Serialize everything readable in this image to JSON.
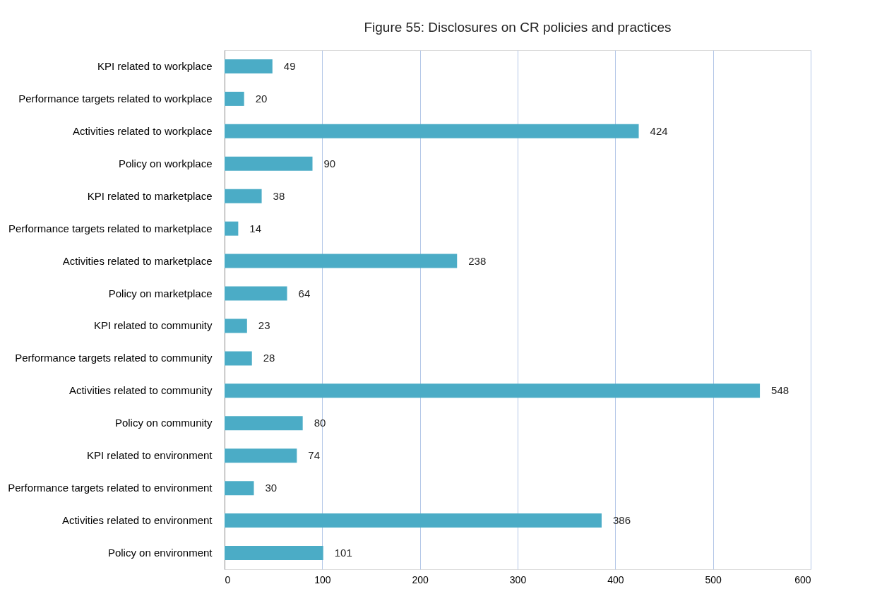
{
  "chart_data": {
    "type": "bar",
    "orientation": "horizontal",
    "title": "Figure 55: Disclosures on CR policies and practices",
    "categories": [
      "KPI related to workplace",
      "Performance targets related to workplace",
      "Activities related to workplace",
      "Policy on workplace",
      "KPI related to marketplace",
      "Performance targets related to marketplace",
      "Activities related to marketplace",
      "Policy on marketplace",
      "KPI related to community",
      "Performance targets related to community",
      "Activities related to community",
      "Policy on community",
      "KPI related to environment",
      "Performance targets related to environment",
      "Activities related to environment",
      "Policy on environment"
    ],
    "values": [
      49,
      20,
      424,
      90,
      38,
      14,
      238,
      64,
      23,
      28,
      548,
      80,
      74,
      30,
      386,
      101
    ],
    "color": "#4bacc6",
    "xlim": [
      0,
      600
    ],
    "xticks": [
      0,
      100,
      200,
      300,
      400,
      500,
      600
    ],
    "grid": "x",
    "data_labels": true
  }
}
